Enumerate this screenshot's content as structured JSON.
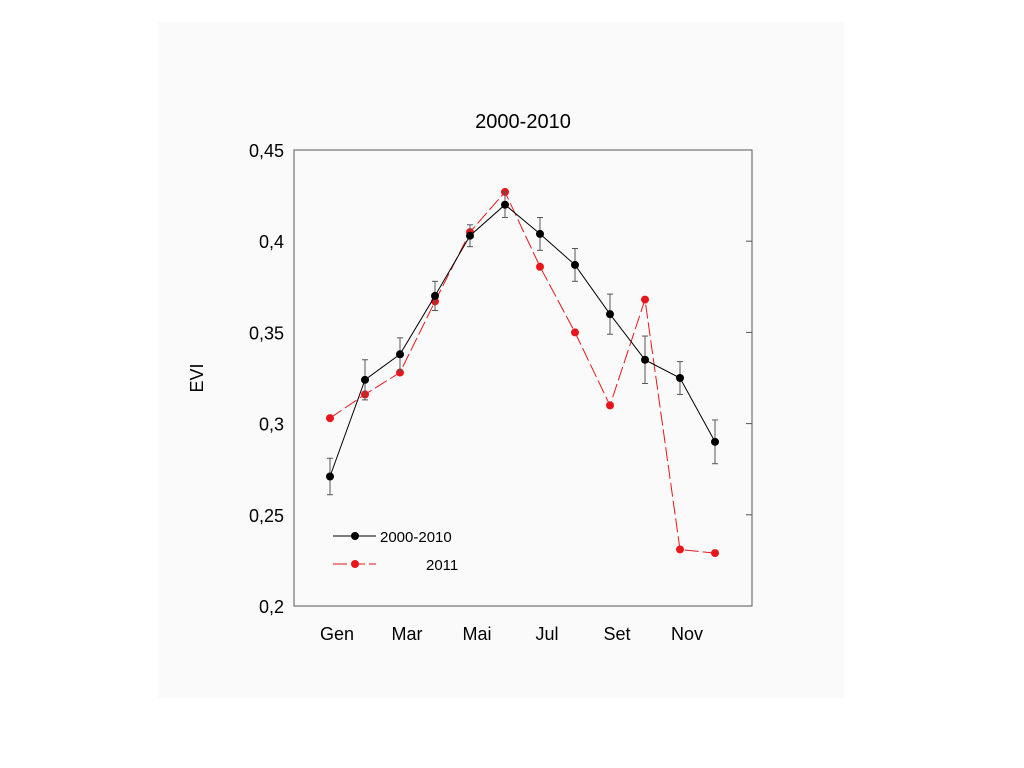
{
  "chart_data": {
    "type": "line",
    "title": "2000-2010",
    "xlabel": "",
    "ylabel": "EVI",
    "ylim": [
      0.2,
      0.45
    ],
    "y_ticks": [
      0.2,
      0.25,
      0.3,
      0.35,
      0.4,
      0.45
    ],
    "y_tick_labels": [
      "0,2",
      "0,25",
      "0,3",
      "0,35",
      "0,4",
      "0,45"
    ],
    "x_tick_labels": [
      "Gen",
      "Mar",
      "Mai",
      "Jul",
      "Set",
      "Nov"
    ],
    "x_tick_months": [
      1,
      3,
      5,
      7,
      9,
      11
    ],
    "x": [
      1,
      2,
      3,
      4,
      5,
      6,
      7,
      8,
      9,
      10,
      11,
      12
    ],
    "grid": false,
    "legend_position": "bottom-left",
    "series": [
      {
        "name": "2000-2010",
        "color": "#000000",
        "line_style": "solid",
        "values": [
          0.271,
          0.324,
          0.338,
          0.37,
          0.403,
          0.42,
          0.404,
          0.387,
          0.36,
          0.335,
          0.325,
          0.29
        ],
        "error": [
          0.01,
          0.011,
          0.009,
          0.008,
          0.006,
          0.007,
          0.009,
          0.009,
          0.011,
          0.013,
          0.009,
          0.012
        ]
      },
      {
        "name": "2011",
        "color": "#e8161b",
        "line_style": "dashed",
        "values": [
          0.303,
          0.316,
          0.328,
          0.367,
          0.405,
          0.427,
          0.386,
          0.35,
          0.31,
          0.368,
          0.231,
          0.229
        ]
      }
    ]
  }
}
